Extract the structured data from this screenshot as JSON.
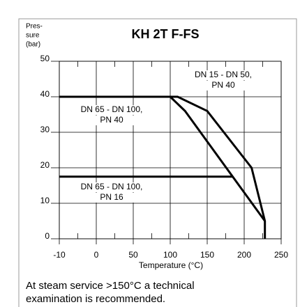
{
  "chart_data": {
    "type": "line",
    "title": "KH 2T F-FS",
    "y_label": [
      "Pres-",
      "sure",
      "(bar)"
    ],
    "x_label": "Temperature (°C)",
    "footnote": [
      "At steam service >150°C a technical",
      "examination is recommended."
    ],
    "xticks": [
      -10,
      0,
      50,
      100,
      150,
      200,
      250
    ],
    "xminorticks": [
      -5,
      25,
      75,
      125,
      175,
      225
    ],
    "xlim": [
      -10,
      250
    ],
    "ylim": [
      0,
      50
    ],
    "yticks": [
      0,
      10,
      20,
      30,
      40,
      50
    ],
    "grid": true,
    "series": [
      {
        "color": "#000000",
        "x": [
          -10,
          110,
          150,
          210,
          228,
          228
        ],
        "values": [
          40,
          40,
          36,
          20,
          5,
          0
        ]
      },
      {
        "color": "#000000",
        "x": [
          -10,
          100,
          120,
          228
        ],
        "values": [
          40,
          40,
          36,
          5
        ]
      },
      {
        "color": "#000000",
        "x": [
          -10,
          185
        ],
        "values": [
          17.5,
          17.5
        ]
      }
    ],
    "annotations": [
      {
        "text": [
          "DN 15 - DN 50,",
          "PN 40"
        ]
      },
      {
        "text": [
          "DN 65 - DN 100,",
          "PN 40"
        ]
      },
      {
        "text": [
          "DN 65 - DN 100,",
          "PN 16"
        ]
      }
    ]
  }
}
